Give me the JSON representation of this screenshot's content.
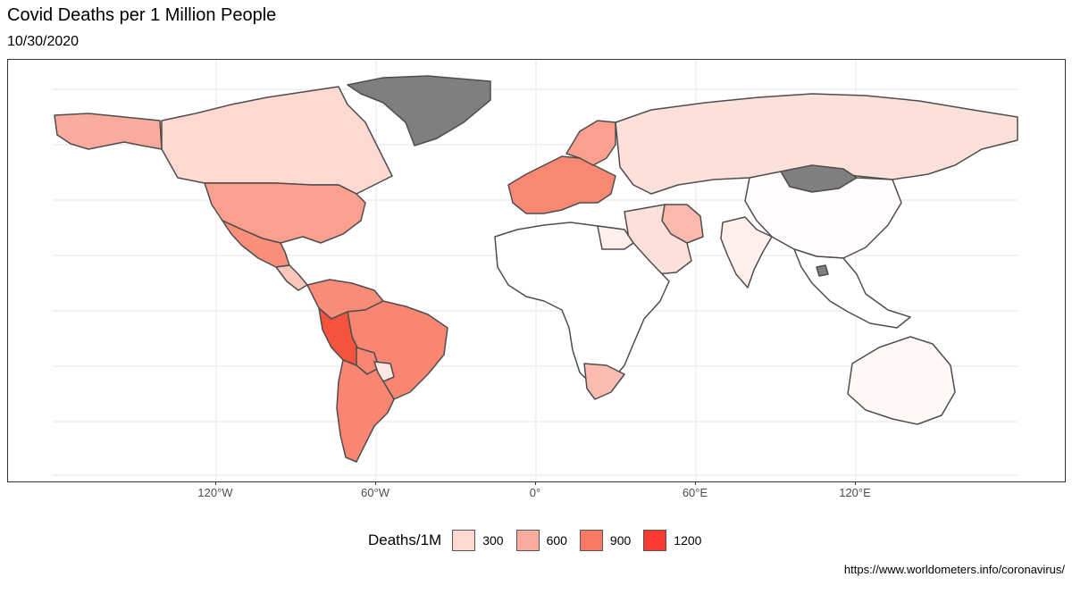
{
  "title": "Covid Deaths per 1 Million People",
  "subtitle": "10/30/2020",
  "axis": {
    "x_ticks": [
      "120°W",
      "60°W",
      "0°",
      "60°E",
      "120°E"
    ]
  },
  "legend": {
    "title": "Deaths/1M",
    "items": [
      {
        "label": "300",
        "color": "#fdd9d2"
      },
      {
        "label": "600",
        "color": "#fbab9d"
      },
      {
        "label": "900",
        "color": "#f87a66"
      },
      {
        "label": "1200",
        "color": "#f73b33"
      }
    ]
  },
  "caption": "https://www.worldometers.info/coronavirus/",
  "colors": {
    "nodata": "#7f7f7f",
    "low": "#ffffff",
    "border": "#4d4d4d",
    "grid": "#ebebeb"
  },
  "regions": [
    {
      "name": "alaska-canada-north",
      "fill": "#fbab9d"
    },
    {
      "name": "canada",
      "fill": "#fdd9d2"
    },
    {
      "name": "greenland",
      "fill": "#7f7f7f"
    },
    {
      "name": "usa",
      "fill": "#fba08f"
    },
    {
      "name": "mexico",
      "fill": "#f98e7b"
    },
    {
      "name": "central-america",
      "fill": "#fcc7bb"
    },
    {
      "name": "colombia-venezuela",
      "fill": "#f98c79"
    },
    {
      "name": "brazil",
      "fill": "#f88672"
    },
    {
      "name": "peru",
      "fill": "#f6533e"
    },
    {
      "name": "bolivia",
      "fill": "#f88672"
    },
    {
      "name": "chile-argentina",
      "fill": "#f88672"
    },
    {
      "name": "paraguay",
      "fill": "#fee8e2"
    },
    {
      "name": "europe-west",
      "fill": "#f98873"
    },
    {
      "name": "scandinavia",
      "fill": "#fba08f"
    },
    {
      "name": "russia",
      "fill": "#fee0da"
    },
    {
      "name": "mongolia",
      "fill": "#7f7f7f"
    },
    {
      "name": "china",
      "fill": "#fffcfb"
    },
    {
      "name": "iran",
      "fill": "#fbb9ab"
    },
    {
      "name": "middle-east",
      "fill": "#fee0da"
    },
    {
      "name": "india",
      "fill": "#fff0ec"
    },
    {
      "name": "africa",
      "fill": "#ffffff"
    },
    {
      "name": "egypt",
      "fill": "#ffefeb"
    },
    {
      "name": "south-africa",
      "fill": "#fbbdb1"
    },
    {
      "name": "australia",
      "fill": "#fff8f6"
    },
    {
      "name": "southeast-asia",
      "fill": "#ffffff"
    },
    {
      "name": "cambodia",
      "fill": "#7f7f7f"
    }
  ]
}
